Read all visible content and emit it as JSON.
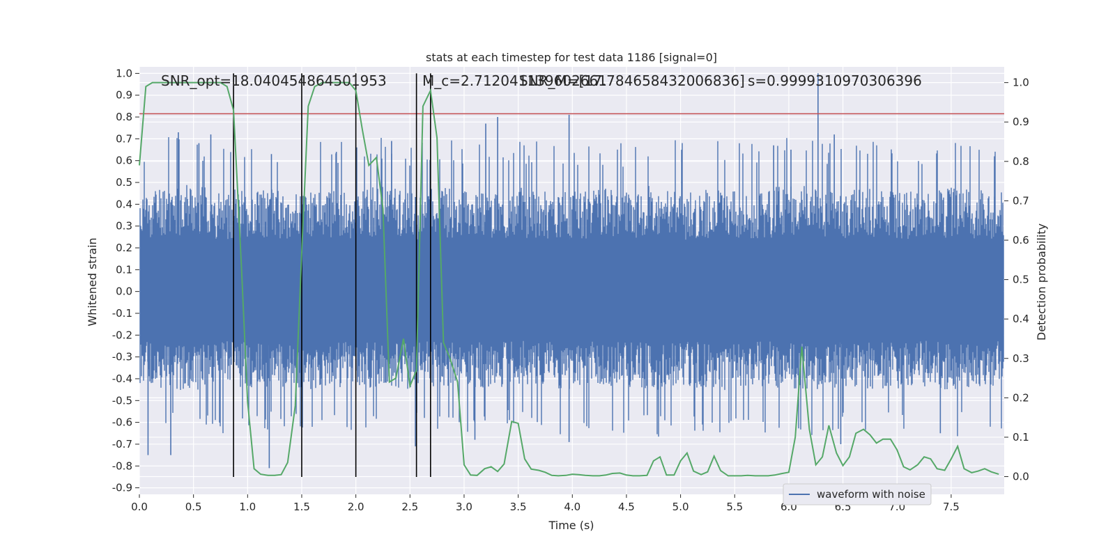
{
  "chart_data": {
    "type": "line",
    "title": "stats at each timestep for test data 1186 [signal=0]",
    "xlabel": "Time (s)",
    "ylabel": "Whitened strain",
    "ylabel_right": "Detection probability",
    "xlim": [
      0,
      7.99
    ],
    "ylim": [
      -0.93,
      1.03
    ],
    "ylim_right": [
      -0.045,
      1.04
    ],
    "x_ticks": [
      "0.0",
      "0.5",
      "1.0",
      "1.5",
      "2.0",
      "2.5",
      "3.0",
      "3.5",
      "4.0",
      "4.5",
      "5.0",
      "5.5",
      "6.0",
      "6.5",
      "7.0",
      "7.5"
    ],
    "y_ticks": [
      "1.0",
      "0.9",
      "0.8",
      "0.7",
      "0.6",
      "0.5",
      "0.4",
      "0.3",
      "0.2",
      "0.1",
      "0.0",
      "-0.1",
      "-0.2",
      "-0.3",
      "-0.4",
      "-0.5",
      "-0.6",
      "-0.7",
      "-0.8",
      "-0.9"
    ],
    "y_right_ticks": [
      "1.0",
      "0.9",
      "0.8",
      "0.7",
      "0.6",
      "0.5",
      "0.4",
      "0.3",
      "0.2",
      "0.1",
      "0.0"
    ],
    "grid": true,
    "legend": {
      "location": "lower-right",
      "entries": [
        "waveform with noise"
      ]
    },
    "annotations": [
      "SNR_opt=18.040454864501953",
      "M_c=2.712041139602661",
      "SNR_M=[17.784658432006836]",
      "s=0.9999310970306396"
    ],
    "threshold_line": {
      "y": 0.815,
      "color": "#c44e52"
    },
    "vertical_lines_x": [
      0.87,
      1.5,
      2.0,
      2.56,
      2.69
    ],
    "vertical_lines_ymin": -0.85,
    "vertical_lines_ymax": 1.0,
    "strain_envelope": {
      "x_step": 0.25,
      "upper": [
        0.42,
        0.46,
        0.47,
        0.43,
        0.45,
        0.44,
        0.43,
        0.45,
        0.44,
        0.46,
        0.43,
        0.45,
        0.44,
        0.43,
        0.45,
        0.44,
        0.43,
        0.45,
        0.44,
        0.46,
        0.43,
        0.44,
        0.45,
        0.43,
        0.47,
        0.45,
        0.44,
        0.45,
        0.43,
        0.44,
        0.45,
        0.44
      ],
      "lower": [
        -0.4,
        -0.42,
        -0.43,
        -0.41,
        -0.42,
        -0.41,
        -0.43,
        -0.42,
        -0.41,
        -0.43,
        -0.42,
        -0.41,
        -0.43,
        -0.42,
        -0.41,
        -0.42,
        -0.43,
        -0.41,
        -0.42,
        -0.43,
        -0.41,
        -0.42,
        -0.43,
        -0.41,
        -0.42,
        -0.43,
        -0.41,
        -0.42,
        -0.42,
        -0.41,
        -0.43,
        -0.42
      ],
      "spikes": [
        {
          "x": 0.36,
          "y": 0.73
        },
        {
          "x": 0.55,
          "y": 0.68
        },
        {
          "x": 0.66,
          "y": 0.72
        },
        {
          "x": 1.22,
          "y": 0.63
        },
        {
          "x": 1.82,
          "y": 0.64
        },
        {
          "x": 2.33,
          "y": 0.69
        },
        {
          "x": 3.2,
          "y": 0.77
        },
        {
          "x": 3.31,
          "y": 0.8
        },
        {
          "x": 3.97,
          "y": 0.81
        },
        {
          "x": 5.86,
          "y": 0.67
        },
        {
          "x": 6.02,
          "y": 0.65
        },
        {
          "x": 6.27,
          "y": 1.0
        },
        {
          "x": 6.42,
          "y": 0.72
        },
        {
          "x": 7.9,
          "y": 0.62
        },
        {
          "x": 0.08,
          "y": -0.75
        },
        {
          "x": 0.29,
          "y": -0.75
        },
        {
          "x": 1.2,
          "y": -0.81
        },
        {
          "x": 2.55,
          "y": -0.71
        },
        {
          "x": 3.1,
          "y": -0.68
        },
        {
          "x": 3.97,
          "y": -0.69
        },
        {
          "x": 6.48,
          "y": -0.7
        },
        {
          "x": 7.4,
          "y": -0.65
        }
      ]
    },
    "series": [
      {
        "name": "waveform with noise",
        "axis": "left",
        "color": "#4c72b0"
      },
      {
        "axis": "right",
        "color": "#55a868",
        "x": [
          0.0,
          0.06,
          0.12,
          0.19,
          0.25,
          0.31,
          0.37,
          0.44,
          0.5,
          0.56,
          0.62,
          0.69,
          0.75,
          0.81,
          0.87,
          0.94,
          1.0,
          1.06,
          1.12,
          1.19,
          1.25,
          1.31,
          1.37,
          1.44,
          1.5,
          1.56,
          1.62,
          1.69,
          1.75,
          1.81,
          1.87,
          1.94,
          2.0,
          2.06,
          2.12,
          2.19,
          2.25,
          2.31,
          2.37,
          2.44,
          2.5,
          2.56,
          2.62,
          2.69,
          2.75,
          2.81,
          2.87,
          2.94,
          3.0,
          3.06,
          3.12,
          3.19,
          3.25,
          3.31,
          3.37,
          3.44,
          3.5,
          3.56,
          3.62,
          3.69,
          3.75,
          3.81,
          3.87,
          3.94,
          4.0,
          4.06,
          4.12,
          4.19,
          4.25,
          4.31,
          4.37,
          4.44,
          4.5,
          4.56,
          4.62,
          4.69,
          4.75,
          4.81,
          4.87,
          4.94,
          5.0,
          5.06,
          5.12,
          5.19,
          5.25,
          5.31,
          5.37,
          5.44,
          5.5,
          5.56,
          5.62,
          5.69,
          5.75,
          5.81,
          5.87,
          5.94,
          6.0,
          6.06,
          6.12,
          6.19,
          6.25,
          6.31,
          6.37,
          6.44,
          6.5,
          6.56,
          6.62,
          6.69,
          6.75,
          6.81,
          6.87,
          6.94,
          7.0,
          7.06,
          7.12,
          7.19,
          7.25,
          7.31,
          7.37,
          7.44,
          7.5,
          7.56,
          7.62,
          7.69,
          7.75,
          7.81,
          7.87,
          7.94
        ],
        "values": [
          0.79,
          0.99,
          1.0,
          1.0,
          1.0,
          1.0,
          1.0,
          1.0,
          1.0,
          1.0,
          1.0,
          1.0,
          1.0,
          0.99,
          0.93,
          0.55,
          0.19,
          0.02,
          0.006,
          0.003,
          0.003,
          0.005,
          0.036,
          0.18,
          0.57,
          0.94,
          0.99,
          1.0,
          1.0,
          1.0,
          1.0,
          1.0,
          0.98,
          0.88,
          0.79,
          0.81,
          0.68,
          0.24,
          0.25,
          0.35,
          0.23,
          0.27,
          0.94,
          0.98,
          0.86,
          0.34,
          0.3,
          0.24,
          0.03,
          0.004,
          0.003,
          0.02,
          0.025,
          0.013,
          0.032,
          0.14,
          0.135,
          0.045,
          0.019,
          0.016,
          0.011,
          0.003,
          0.002,
          0.003,
          0.006,
          0.005,
          0.003,
          0.002,
          0.002,
          0.004,
          0.008,
          0.009,
          0.004,
          0.002,
          0.002,
          0.003,
          0.04,
          0.05,
          0.004,
          0.004,
          0.04,
          0.06,
          0.014,
          0.005,
          0.012,
          0.052,
          0.015,
          0.002,
          0.002,
          0.002,
          0.003,
          0.002,
          0.002,
          0.002,
          0.004,
          0.008,
          0.011,
          0.1,
          0.33,
          0.12,
          0.03,
          0.05,
          0.13,
          0.06,
          0.028,
          0.05,
          0.11,
          0.12,
          0.106,
          0.085,
          0.095,
          0.095,
          0.068,
          0.025,
          0.017,
          0.03,
          0.05,
          0.045,
          0.02,
          0.016,
          0.045,
          0.077,
          0.02,
          0.01,
          0.014,
          0.02,
          0.012,
          0.006
        ]
      }
    ]
  }
}
